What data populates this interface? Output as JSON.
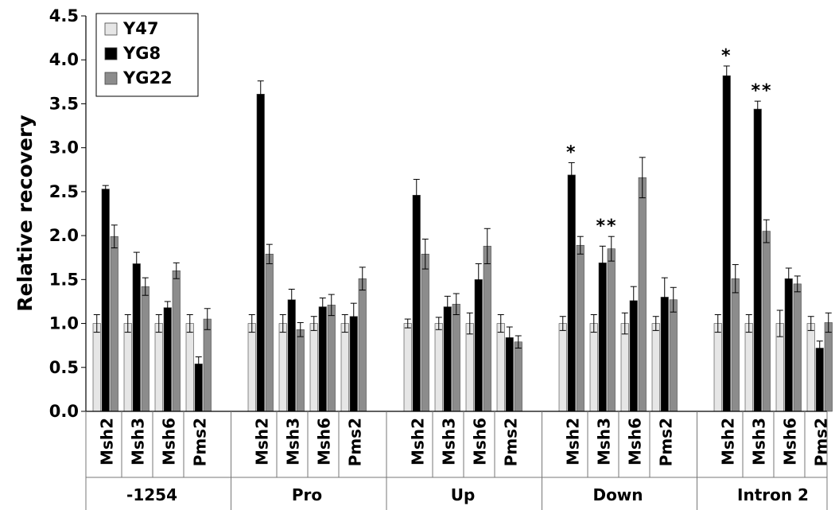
{
  "chart_data": {
    "type": "bar",
    "title": "",
    "ylabel": "Relative recovery",
    "xlabel": "",
    "ylim": [
      0,
      4.5
    ],
    "yticks": [
      "0.0",
      "0.5",
      "1.0",
      "1.5",
      "2.0",
      "2.5",
      "3.0",
      "3.5",
      "4.0",
      "4.5"
    ],
    "grid": false,
    "legend_position": "top-left",
    "groups": [
      "-1254",
      "Pro",
      "Up",
      "Down",
      "Intron 2"
    ],
    "genes": [
      "Msh2",
      "Msh3",
      "Msh6",
      "Pms2"
    ],
    "series": [
      {
        "name": "Y47",
        "color": "#e6e6e6",
        "values": [
          [
            1.0,
            1.0,
            1.0,
            1.0
          ],
          [
            1.0,
            1.0,
            1.0,
            1.0
          ],
          [
            1.0,
            1.0,
            1.0,
            1.0
          ],
          [
            1.0,
            1.0,
            1.0,
            1.0
          ],
          [
            1.0,
            1.0,
            1.0,
            1.0
          ]
        ],
        "errors": [
          [
            0.1,
            0.1,
            0.1,
            0.1
          ],
          [
            0.1,
            0.1,
            0.08,
            0.1
          ],
          [
            0.05,
            0.07,
            0.12,
            0.1
          ],
          [
            0.08,
            0.1,
            0.12,
            0.08
          ],
          [
            0.1,
            0.1,
            0.15,
            0.08
          ]
        ]
      },
      {
        "name": "YG8",
        "color": "#000000",
        "values": [
          [
            2.53,
            1.68,
            1.18,
            0.54
          ],
          [
            3.61,
            1.27,
            1.19,
            1.08
          ],
          [
            2.46,
            1.19,
            1.5,
            0.84
          ],
          [
            2.69,
            1.69,
            1.26,
            1.3
          ],
          [
            3.82,
            3.44,
            1.51,
            0.72
          ]
        ],
        "errors": [
          [
            0.04,
            0.13,
            0.07,
            0.08
          ],
          [
            0.15,
            0.12,
            0.1,
            0.15
          ],
          [
            0.18,
            0.12,
            0.18,
            0.12
          ],
          [
            0.14,
            0.19,
            0.16,
            0.22
          ],
          [
            0.11,
            0.09,
            0.12,
            0.08
          ]
        ]
      },
      {
        "name": "YG22",
        "color": "#8c8c8c",
        "values": [
          [
            1.99,
            1.42,
            1.6,
            1.05
          ],
          [
            1.79,
            0.93,
            1.21,
            1.51
          ],
          [
            1.79,
            1.22,
            1.88,
            0.79
          ],
          [
            1.89,
            1.85,
            2.66,
            1.27
          ],
          [
            1.51,
            2.05,
            1.45,
            1.01
          ]
        ],
        "errors": [
          [
            0.13,
            0.1,
            0.09,
            0.12
          ],
          [
            0.11,
            0.08,
            0.12,
            0.13
          ],
          [
            0.17,
            0.12,
            0.2,
            0.07
          ],
          [
            0.1,
            0.14,
            0.23,
            0.14
          ],
          [
            0.16,
            0.13,
            0.09,
            0.11
          ]
        ]
      }
    ],
    "annotations": [
      {
        "text": "*",
        "group": "Down",
        "gene": "Msh2"
      },
      {
        "text": "**",
        "group": "Down",
        "gene": "Msh3"
      },
      {
        "text": "*",
        "group": "Intron 2",
        "gene": "Msh2"
      },
      {
        "text": "**",
        "group": "Intron 2",
        "gene": "Msh3"
      }
    ]
  }
}
